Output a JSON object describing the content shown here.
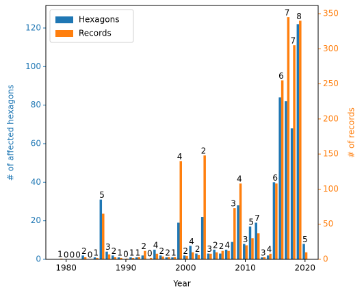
{
  "chart_data": {
    "type": "bar",
    "x_label": "Year",
    "y_label": "# of affected hexagons",
    "y2_label": "# of records",
    "categories": [
      1979,
      1980,
      1981,
      1982,
      1983,
      1984,
      1985,
      1986,
      1987,
      1988,
      1989,
      1990,
      1991,
      1992,
      1993,
      1994,
      1995,
      1996,
      1997,
      1998,
      1999,
      2000,
      2001,
      2002,
      2003,
      2004,
      2005,
      2006,
      2007,
      2008,
      2009,
      2010,
      2011,
      2012,
      2013,
      2014,
      2015,
      2016,
      2017,
      2018,
      2019,
      2020
    ],
    "series": [
      {
        "name": "Hexagons",
        "color": "#1f77b4",
        "values": [
          0,
          0,
          0,
          0,
          2,
          0,
          1,
          31,
          4,
          2,
          1,
          0,
          1,
          1,
          2,
          0,
          5,
          2,
          1,
          1,
          19,
          2,
          7,
          3,
          22,
          3,
          5,
          3,
          5,
          9,
          28,
          8,
          17,
          19,
          1,
          2,
          40,
          84,
          82,
          68,
          122,
          8
        ]
      },
      {
        "name": "Records",
        "color": "#ff7f0e",
        "axis": "y2",
        "values": [
          1,
          0,
          0,
          0,
          3,
          0,
          2,
          65,
          7,
          3,
          2,
          1,
          2,
          3,
          12,
          2,
          8,
          4,
          3,
          3,
          140,
          5,
          10,
          6,
          148,
          8,
          10,
          12,
          12,
          73,
          108,
          20,
          30,
          37,
          3,
          8,
          108,
          255,
          345,
          305,
          340,
          10
        ]
      }
    ],
    "bar_labels": [
      1,
      0,
      0,
      0,
      2,
      0,
      1,
      5,
      3,
      2,
      1,
      0,
      1,
      1,
      2,
      0,
      4,
      2,
      2,
      1,
      4,
      2,
      4,
      2,
      2,
      3,
      2,
      2,
      4,
      3,
      4,
      3,
      5,
      7,
      3,
      4,
      6,
      6,
      7,
      7,
      8,
      5
    ],
    "xlim": [
      1976.6,
      2022.2
    ],
    "xticks": [
      1980,
      1990,
      2000,
      2010,
      2020
    ],
    "ylim": [
      0,
      131.7
    ],
    "yticks": [
      0,
      20,
      40,
      60,
      80,
      100,
      120
    ],
    "y2lim": [
      0,
      361.7
    ],
    "y2ticks": [
      0,
      50,
      100,
      150,
      200,
      250,
      300,
      350
    ],
    "legend": "upper left"
  }
}
